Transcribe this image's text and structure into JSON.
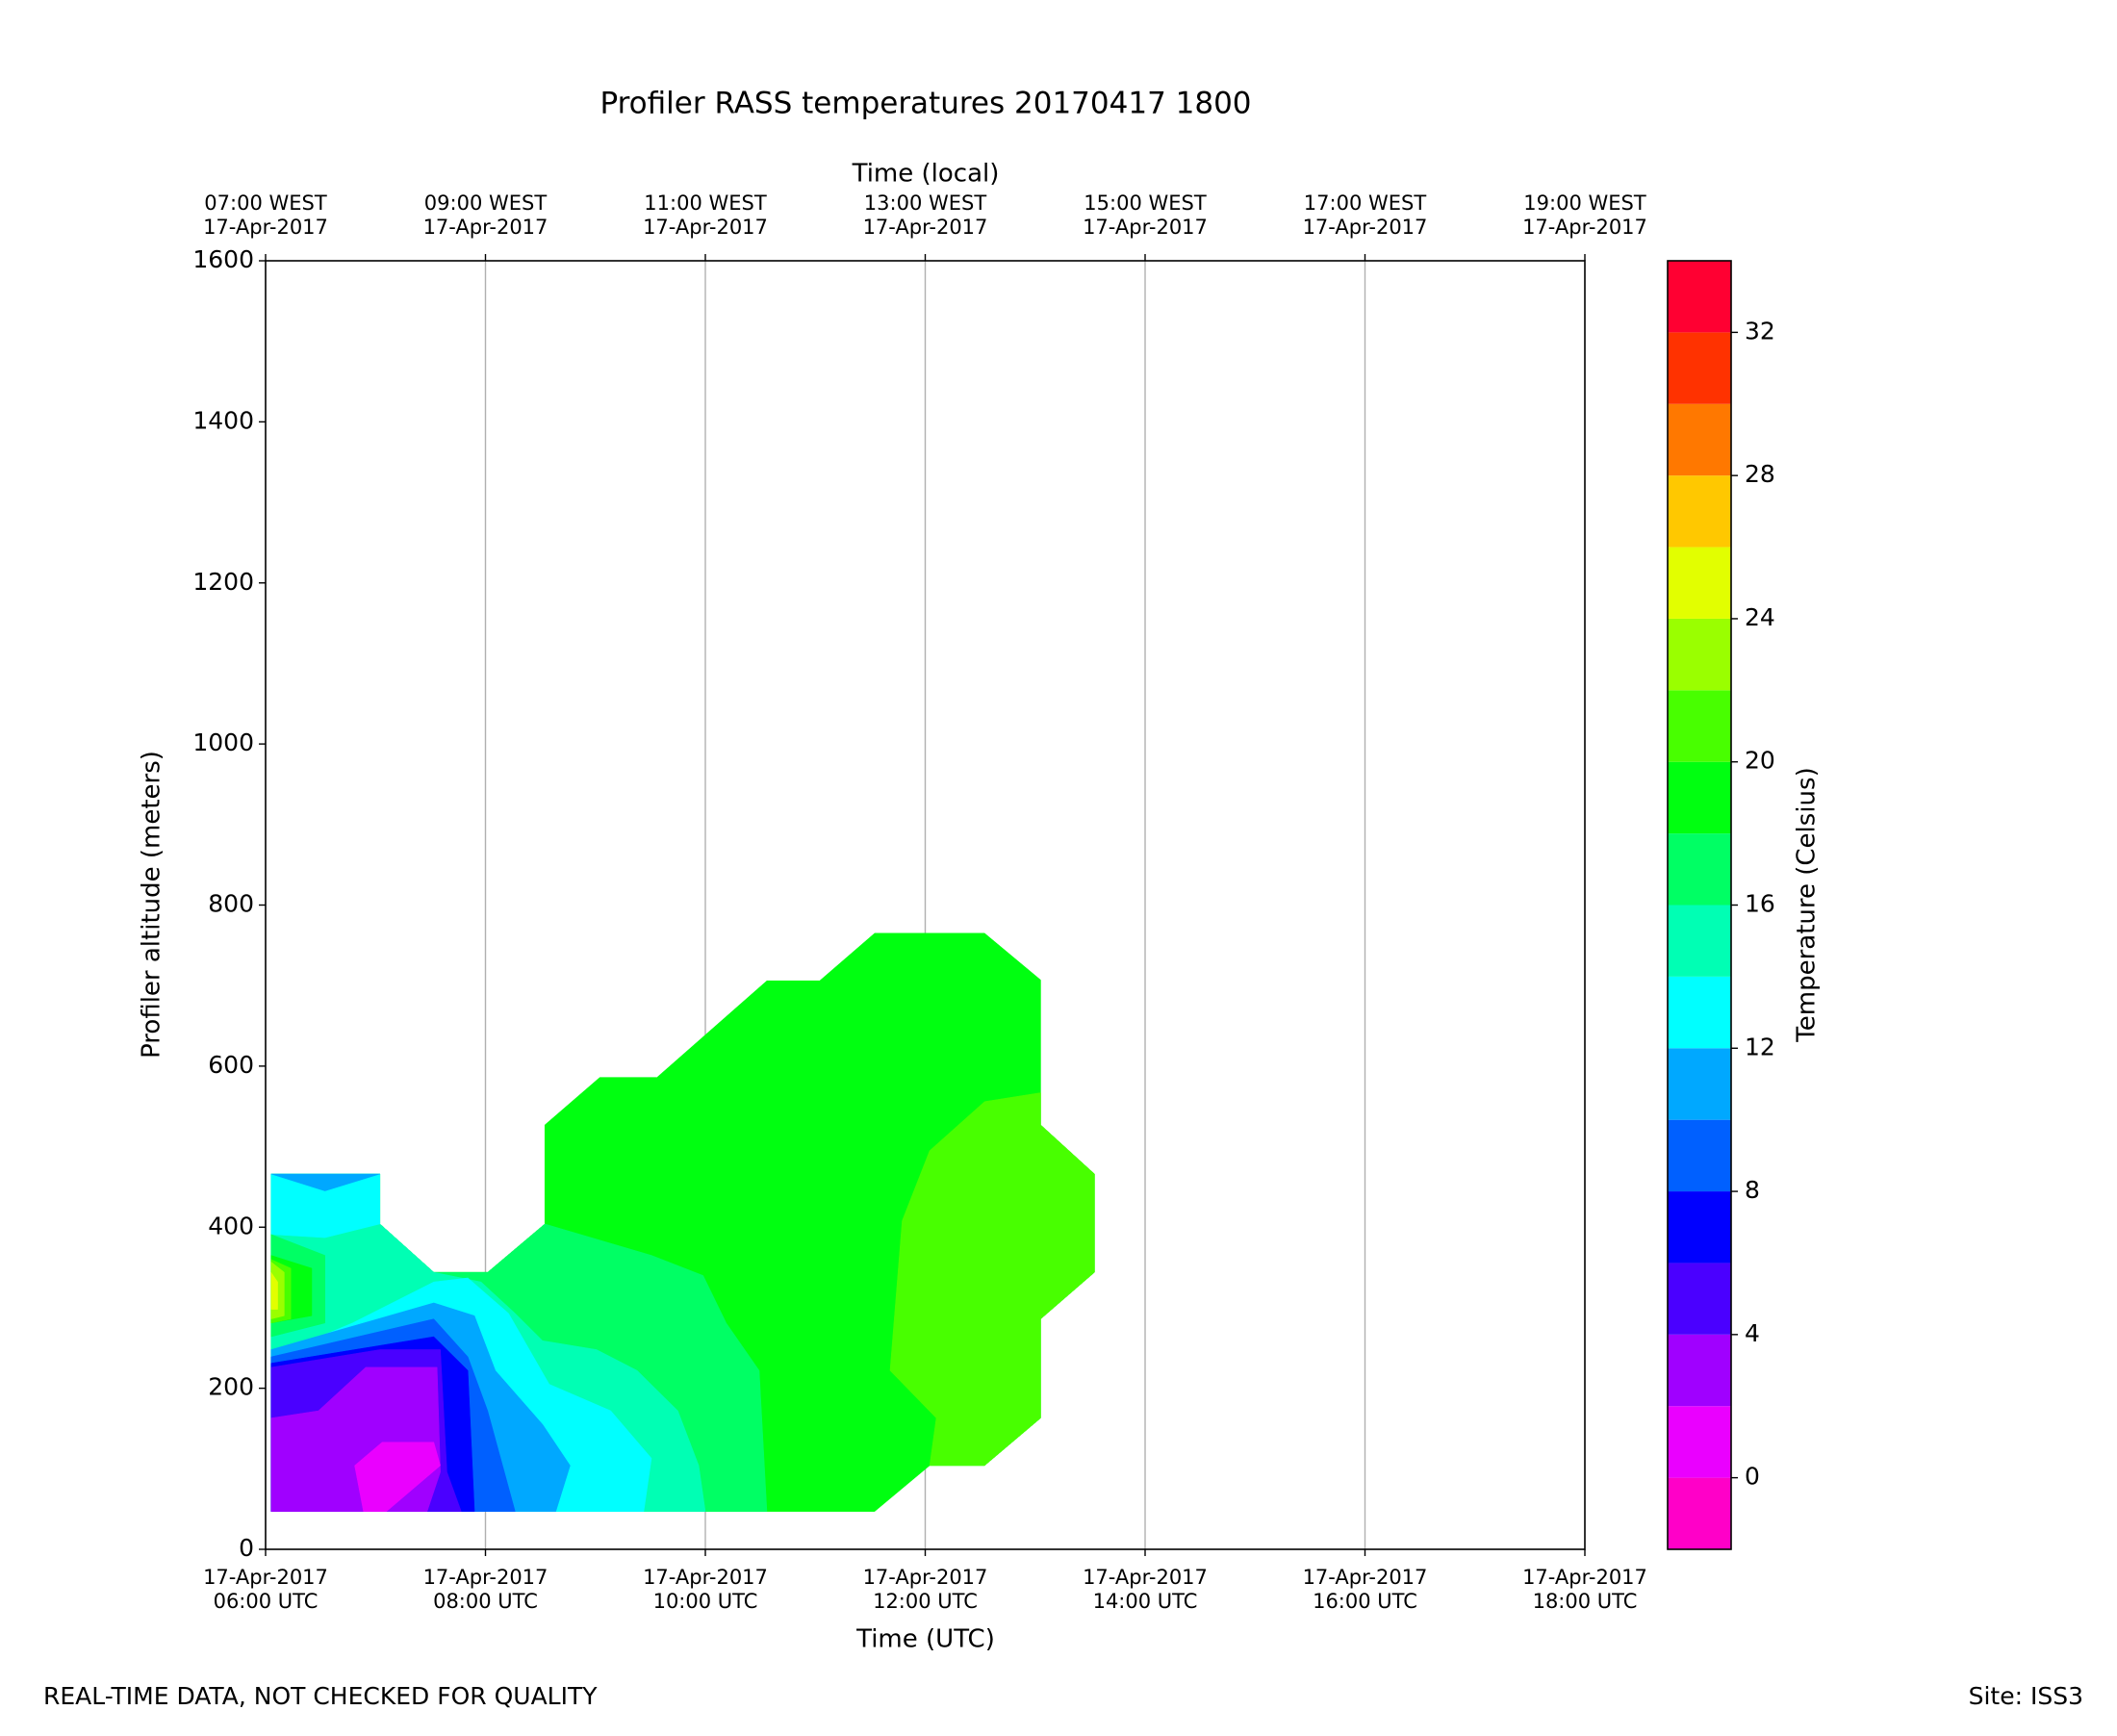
{
  "chart_data": {
    "type": "contour",
    "title": "Profiler RASS temperatures 20170417 1800",
    "x_label": "Time (UTC)",
    "x2_label": "Time (local)",
    "y_label": "Profiler altitude (meters)",
    "colorbar_label": "Temperature (Celsius)",
    "footer_left": "REAL-TIME DATA, NOT CHECKED FOR QUALITY",
    "footer_right": "Site: ISS3",
    "grid": "x",
    "xlim": [
      6,
      18
    ],
    "xticks": [
      {
        "value": 6,
        "label": "17-Apr-2017\n06:00 UTC"
      },
      {
        "value": 8,
        "label": "17-Apr-2017\n08:00 UTC"
      },
      {
        "value": 10,
        "label": "17-Apr-2017\n10:00 UTC"
      },
      {
        "value": 12,
        "label": "17-Apr-2017\n12:00 UTC"
      },
      {
        "value": 14,
        "label": "17-Apr-2017\n14:00 UTC"
      },
      {
        "value": 16,
        "label": "17-Apr-2017\n16:00 UTC"
      },
      {
        "value": 18,
        "label": "17-Apr-2017\n18:00 UTC"
      }
    ],
    "x2lim": [
      7,
      19
    ],
    "x2ticks": [
      {
        "value": 7,
        "label": "07:00 WEST\n17-Apr-2017"
      },
      {
        "value": 9,
        "label": "09:00 WEST\n17-Apr-2017"
      },
      {
        "value": 11,
        "label": "11:00 WEST\n17-Apr-2017"
      },
      {
        "value": 13,
        "label": "13:00 WEST\n17-Apr-2017"
      },
      {
        "value": 15,
        "label": "15:00 WEST\n17-Apr-2017"
      },
      {
        "value": 17,
        "label": "17:00 WEST\n17-Apr-2017"
      },
      {
        "value": 19,
        "label": "19:00 WEST\n17-Apr-2017"
      }
    ],
    "ylim": [
      0,
      1600
    ],
    "yticks": [
      0,
      200,
      400,
      600,
      800,
      1000,
      1200,
      1400,
      1600
    ],
    "clim": [
      -2,
      34
    ],
    "cticks": [
      0,
      4,
      8,
      12,
      16,
      20,
      24,
      28,
      32
    ],
    "levels": [
      -2,
      0,
      2,
      4,
      6,
      8,
      10,
      12,
      14,
      16,
      18,
      20,
      22,
      24,
      26,
      28,
      30,
      32,
      34
    ],
    "colors": [
      "#ff00c8",
      "#ea00ff",
      "#a000ff",
      "#4a00ff",
      "#0000ff",
      "#0060ff",
      "#00a8ff",
      "#00ffff",
      "#00ffb4",
      "#00ff64",
      "#00ff10",
      "#48ff00",
      "#9aff00",
      "#e2ff00",
      "#ffc800",
      "#ff7800",
      "#ff3200",
      "#ff0032"
    ],
    "regions": [
      {
        "level": 18,
        "points": [
          [
            6.05,
            47
          ],
          [
            6.05,
            466
          ],
          [
            7.04,
            466
          ],
          [
            7.04,
            404
          ],
          [
            7.53,
            344
          ],
          [
            8.02,
            344
          ],
          [
            8.54,
            404
          ],
          [
            8.54,
            527
          ],
          [
            9.04,
            586
          ],
          [
            9.56,
            586
          ],
          [
            10.56,
            706
          ],
          [
            11.04,
            706
          ],
          [
            11.54,
            765
          ],
          [
            12.54,
            765
          ],
          [
            13.05,
            707
          ],
          [
            13.05,
            527
          ],
          [
            13.54,
            466
          ],
          [
            13.54,
            344
          ],
          [
            13.05,
            286
          ],
          [
            13.05,
            163
          ],
          [
            12.54,
            104
          ],
          [
            12.04,
            104
          ],
          [
            11.54,
            47
          ]
        ]
      },
      {
        "level": 20,
        "points": [
          [
            13.05,
            527
          ],
          [
            13.05,
            567
          ],
          [
            12.54,
            556
          ],
          [
            12.04,
            495
          ],
          [
            11.79,
            408
          ],
          [
            11.68,
            222
          ],
          [
            12.1,
            163
          ],
          [
            12.04,
            104
          ],
          [
            12.54,
            104
          ],
          [
            13.05,
            163
          ],
          [
            13.05,
            286
          ],
          [
            13.54,
            344
          ],
          [
            13.54,
            466
          ]
        ]
      },
      {
        "level": 16,
        "points": [
          [
            6.05,
            47
          ],
          [
            6.05,
            466
          ],
          [
            7.04,
            466
          ],
          [
            7.04,
            404
          ],
          [
            7.53,
            344
          ],
          [
            8.02,
            344
          ],
          [
            8.54,
            404
          ],
          [
            9.51,
            365
          ],
          [
            9.98,
            340
          ],
          [
            10.19,
            281
          ],
          [
            10.49,
            222
          ],
          [
            10.56,
            47
          ]
        ]
      },
      {
        "level": 14,
        "points": [
          [
            6.05,
            47
          ],
          [
            6.05,
            391
          ],
          [
            7.04,
            404
          ],
          [
            7.53,
            344
          ],
          [
            7.96,
            332
          ],
          [
            8.27,
            293
          ],
          [
            8.52,
            259
          ],
          [
            9.01,
            248
          ],
          [
            9.38,
            222
          ],
          [
            9.75,
            172
          ],
          [
            9.94,
            104
          ],
          [
            10,
            47
          ]
        ]
      },
      {
        "level": 12,
        "points": [
          [
            6.05,
            466
          ],
          [
            7.04,
            466
          ],
          [
            7.04,
            404
          ],
          [
            6.54,
            387
          ],
          [
            6.05,
            391
          ]
        ]
      },
      {
        "level": 12,
        "points": [
          [
            6.05,
            47
          ],
          [
            6.05,
            239
          ],
          [
            6.79,
            281
          ],
          [
            7.53,
            332
          ],
          [
            7.84,
            337
          ],
          [
            8.21,
            293
          ],
          [
            8.58,
            205
          ],
          [
            9.14,
            172
          ],
          [
            9.51,
            113
          ],
          [
            9.44,
            47
          ]
        ]
      },
      {
        "level": 10,
        "points": [
          [
            6.05,
            466
          ],
          [
            7.04,
            466
          ],
          [
            6.54,
            445
          ]
        ]
      },
      {
        "level": 10,
        "points": [
          [
            6.05,
            47
          ],
          [
            6.05,
            248
          ],
          [
            7.53,
            306
          ],
          [
            7.9,
            290
          ],
          [
            8.09,
            222
          ],
          [
            8.52,
            155
          ],
          [
            8.77,
            104
          ],
          [
            8.64,
            47
          ]
        ]
      },
      {
        "level": 8,
        "points": [
          [
            6.05,
            47
          ],
          [
            6.05,
            239
          ],
          [
            7.53,
            286
          ],
          [
            7.84,
            239
          ],
          [
            8.02,
            172
          ],
          [
            8.27,
            47
          ]
        ]
      },
      {
        "level": 6,
        "points": [
          [
            6.05,
            47
          ],
          [
            6.05,
            231
          ],
          [
            7.53,
            264
          ],
          [
            7.84,
            222
          ],
          [
            7.9,
            47
          ]
        ]
      },
      {
        "level": 4,
        "points": [
          [
            6.05,
            47
          ],
          [
            6.05,
            226
          ],
          [
            7.04,
            248
          ],
          [
            7.59,
            248
          ],
          [
            7.65,
            96
          ],
          [
            7.78,
            47
          ]
        ]
      },
      {
        "level": 2,
        "points": [
          [
            6.05,
            47
          ],
          [
            6.05,
            163
          ],
          [
            6.48,
            172
          ],
          [
            6.91,
            226
          ],
          [
            7.56,
            226
          ],
          [
            7.59,
            96
          ],
          [
            7.47,
            47
          ]
        ]
      },
      {
        "level": 0,
        "points": [
          [
            6.81,
            104
          ],
          [
            7.06,
            133
          ],
          [
            7.53,
            133
          ],
          [
            7.59,
            104
          ],
          [
            7.1,
            47
          ],
          [
            6.89,
            47
          ]
        ]
      },
      {
        "level": 16,
        "points": [
          [
            6.05,
            391
          ],
          [
            6.54,
            365
          ],
          [
            6.54,
            281
          ],
          [
            6.05,
            264
          ]
        ]
      },
      {
        "level": 18,
        "points": [
          [
            6.05,
            365
          ],
          [
            6.42,
            349
          ],
          [
            6.42,
            290
          ],
          [
            6.05,
            281
          ]
        ]
      },
      {
        "level": 20,
        "points": [
          [
            6.05,
            360
          ],
          [
            6.23,
            349
          ],
          [
            6.23,
            286
          ],
          [
            6.05,
            281
          ]
        ]
      },
      {
        "level": 22,
        "points": [
          [
            6.05,
            357
          ],
          [
            6.17,
            344
          ],
          [
            6.17,
            290
          ],
          [
            6.05,
            286
          ]
        ]
      },
      {
        "level": 24,
        "points": [
          [
            6.05,
            344
          ],
          [
            6.11,
            332
          ],
          [
            6.11,
            298
          ],
          [
            6.05,
            298
          ]
        ]
      }
    ]
  }
}
